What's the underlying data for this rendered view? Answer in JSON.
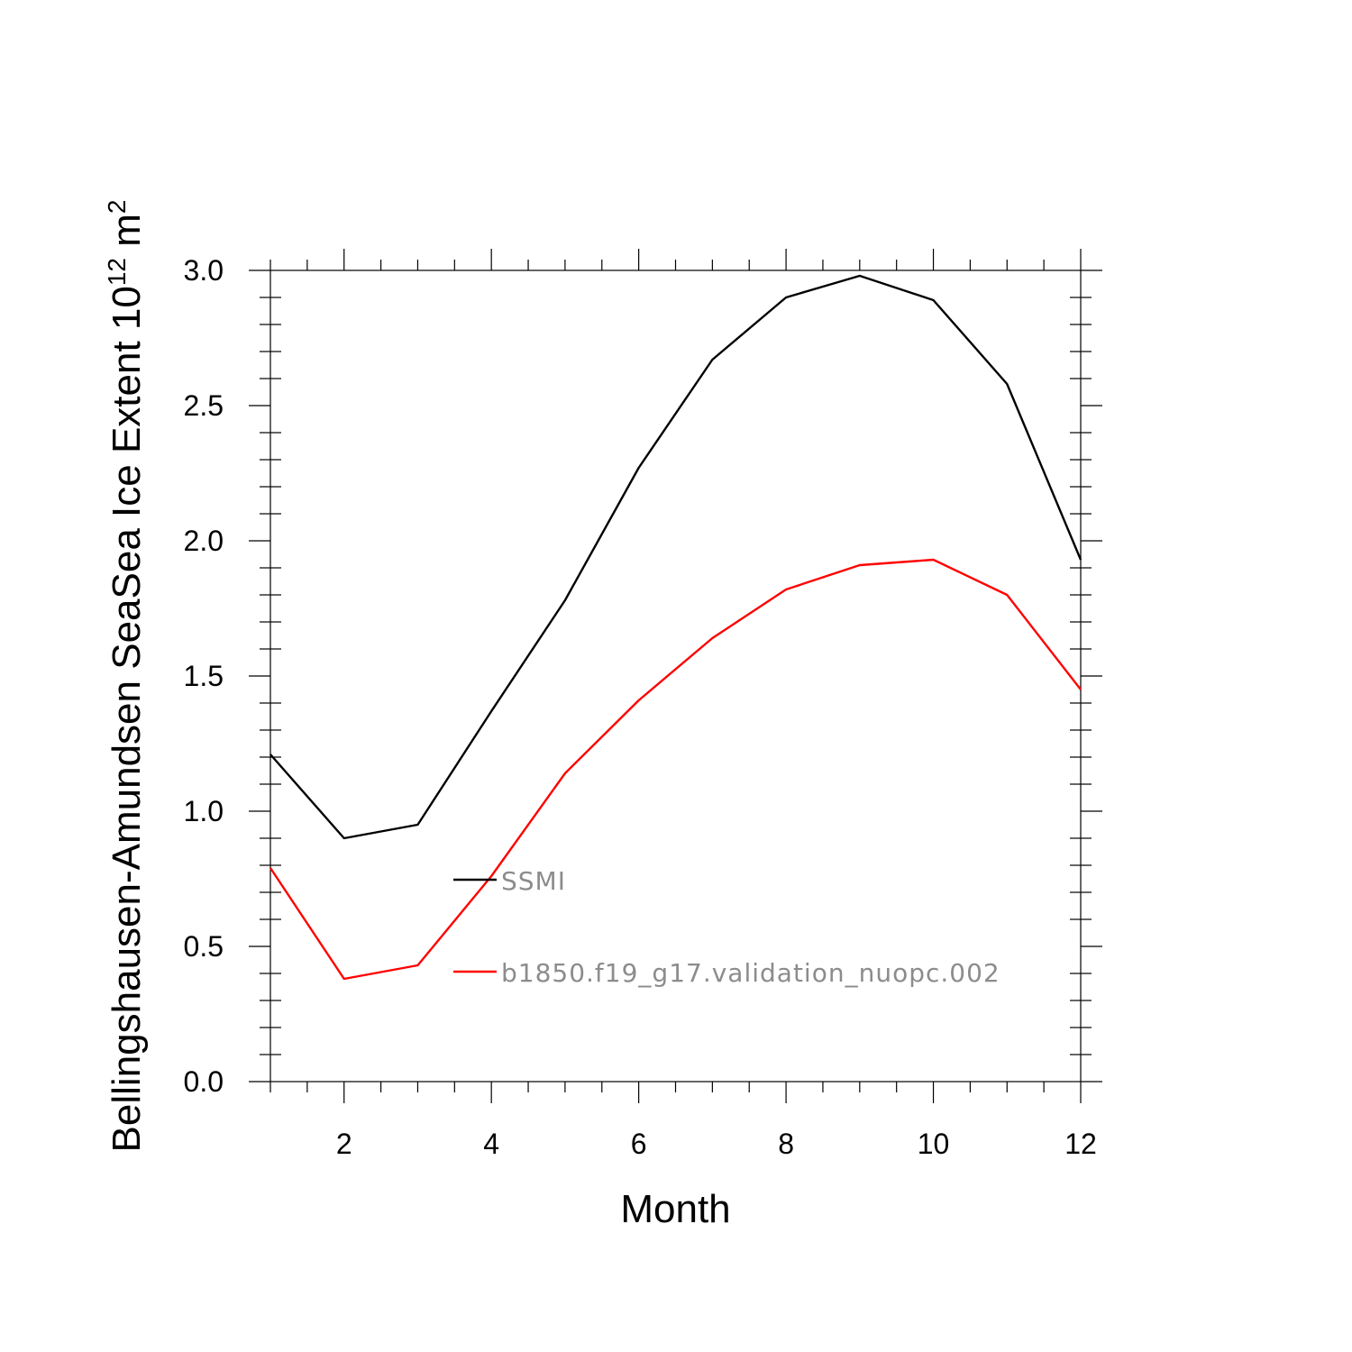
{
  "chart_data": {
    "type": "line",
    "xlabel": "Month",
    "ylabel": {
      "main": "Bellingshausen-Amundsen SeaSea Ice Extent 10",
      "superscript_exp": "12",
      "unit": " m",
      "superscript_unit": "2"
    },
    "xlim": [
      1,
      12
    ],
    "ylim": [
      0,
      3.0
    ],
    "xticks": [
      2,
      4,
      6,
      8,
      10,
      12
    ],
    "yticks": [
      0.0,
      0.5,
      1.0,
      1.5,
      2.0,
      2.5,
      3.0
    ],
    "ytick_labels": [
      "0.0",
      "0.5",
      "1.0",
      "1.5",
      "2.0",
      "2.5",
      "3.0"
    ],
    "xtick_labels": [
      "2",
      "4",
      "6",
      "8",
      "10",
      "12"
    ],
    "x": [
      1,
      2,
      3,
      4,
      5,
      6,
      7,
      8,
      9,
      10,
      11,
      12
    ],
    "series": [
      {
        "name": "SSMI",
        "color": "#000000",
        "values": [
          1.21,
          0.9,
          0.95,
          1.37,
          1.78,
          2.27,
          2.67,
          2.9,
          2.98,
          2.89,
          2.58,
          1.93
        ]
      },
      {
        "name": "b1850.f19_g17.validation_nuopc.002",
        "color": "#ff0000",
        "values": [
          0.79,
          0.38,
          0.43,
          0.76,
          1.14,
          1.41,
          1.64,
          1.82,
          1.91,
          1.93,
          1.8,
          1.45
        ]
      }
    ],
    "legend_placement": "center-left inside plot",
    "grid": false
  }
}
